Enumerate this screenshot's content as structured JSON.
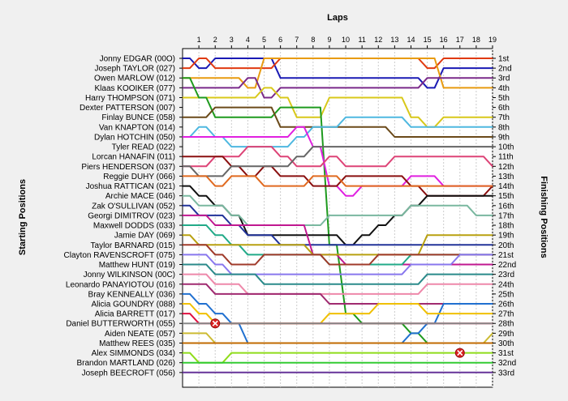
{
  "chart_data": {
    "type": "line",
    "title": "Laps",
    "ylabel_left": "Starting Positions",
    "ylabel_right": "Finishing Positions",
    "x": [
      0,
      1,
      2,
      3,
      4,
      5,
      6,
      7,
      8,
      9,
      10,
      11,
      12,
      13,
      14,
      15,
      16,
      17,
      18,
      19
    ],
    "x_tick_labels": [
      "1",
      "2",
      "3",
      "4",
      "5",
      "6",
      "7",
      "8",
      "9",
      "10",
      "11",
      "12",
      "13",
      "14",
      "15",
      "16",
      "17",
      "18",
      "19"
    ],
    "y_range": [
      1,
      33
    ],
    "y_axis_inverted": true,
    "grid": true,
    "finish_labels": [
      "1st",
      "2nd",
      "3rd",
      "4th",
      "5th",
      "6th",
      "7th",
      "8th",
      "9th",
      "10th",
      "11th",
      "12th",
      "13th",
      "14th",
      "15th",
      "16th",
      "17th",
      "18th",
      "19th",
      "20th",
      "21st",
      "22nd",
      "23rd",
      "24th",
      "25th",
      "26th",
      "27th",
      "28th",
      "29th",
      "30th",
      "31st",
      "32nd",
      "33rd"
    ],
    "series": [
      {
        "name": "Jonny EDGAR (00O)",
        "color": "#1a1ab4",
        "positions": [
          1,
          2,
          1,
          1,
          1,
          1,
          3,
          3,
          3,
          3,
          3,
          3,
          3,
          3,
          3,
          4,
          2,
          2,
          2,
          2
        ]
      },
      {
        "name": "Joseph TAYLOR (027)",
        "color": "#e03a10",
        "positions": [
          2,
          1,
          2,
          2,
          2,
          2,
          1,
          1,
          1,
          1,
          1,
          1,
          1,
          1,
          1,
          2,
          1,
          1,
          1,
          1
        ]
      },
      {
        "name": "Owen MARLOW (012)",
        "color": "#e89b10",
        "positions": [
          3,
          3,
          3,
          3,
          4,
          1,
          1,
          1,
          1,
          1,
          1,
          1,
          1,
          1,
          1,
          1,
          4,
          4,
          4,
          4
        ]
      },
      {
        "name": "Klaas KOOIKER (077)",
        "color": "#7a2a8a",
        "positions": [
          4,
          4,
          4,
          4,
          3,
          5,
          4,
          4,
          4,
          4,
          4,
          4,
          4,
          4,
          4,
          3,
          3,
          3,
          3,
          3
        ]
      },
      {
        "name": "Harry THOMPSON (071)",
        "color": "#d8c81a",
        "positions": [
          5,
          5,
          5,
          5,
          5,
          4,
          5,
          7,
          7,
          5,
          5,
          5,
          5,
          5,
          7,
          8,
          7,
          7,
          7,
          7
        ]
      },
      {
        "name": "Dexter PATTERSON (007)",
        "color": "#1e9a1e",
        "positions": [
          3,
          5,
          7,
          7,
          7,
          7,
          6,
          6,
          6,
          20,
          27,
          28,
          28,
          28,
          29,
          30,
          30,
          30,
          30,
          30
        ]
      },
      {
        "name": "Finlay BUNCE (058)",
        "color": "#6b4a1a",
        "positions": [
          7,
          7,
          6,
          6,
          6,
          6,
          8,
          8,
          8,
          8,
          8,
          8,
          8,
          9,
          9,
          9,
          9,
          9,
          9,
          9
        ]
      },
      {
        "name": "Van KNAPTON (014)",
        "color": "#4fb8e0",
        "positions": [
          9,
          8,
          9,
          10,
          10,
          10,
          10,
          9,
          8,
          8,
          7,
          7,
          7,
          7,
          8,
          8,
          8,
          8,
          8,
          8
        ]
      },
      {
        "name": "Dylan HOTCHIN (050)",
        "color": "#e020e0",
        "positions": [
          9,
          9,
          9,
          9,
          9,
          9,
          9,
          8,
          10,
          14,
          15,
          14,
          14,
          14,
          13,
          13,
          14,
          14,
          14,
          14
        ]
      },
      {
        "name": "Tyler READ (022)",
        "color": "#dd4477",
        "positions": [
          12,
          12,
          11,
          11,
          10,
          10,
          11,
          12,
          12,
          11,
          12,
          12,
          12,
          11,
          11,
          11,
          11,
          11,
          11,
          12
        ]
      },
      {
        "name": "Lorcan HANAFIN (011)",
        "color": "#8a1010",
        "positions": [
          11,
          11,
          11,
          12,
          13,
          12,
          13,
          13,
          14,
          14,
          13,
          13,
          13,
          13,
          14,
          15,
          15,
          15,
          15,
          14
        ]
      },
      {
        "name": "Piers HENDERSON (037)",
        "color": "#666666",
        "positions": [
          12,
          13,
          13,
          12,
          12,
          12,
          12,
          11,
          10,
          10,
          10,
          10,
          10,
          10,
          10,
          10,
          10,
          10,
          10,
          10
        ]
      },
      {
        "name": "Reggie DUHY (066)",
        "color": "#e06a20",
        "positions": [
          13,
          13,
          14,
          13,
          13,
          14,
          14,
          14,
          13,
          13,
          14,
          14,
          14,
          14,
          14,
          14,
          14,
          14,
          14,
          14
        ]
      },
      {
        "name": "Joshua RATTICAN (021)",
        "color": "#111111",
        "positions": [
          14,
          15,
          16,
          17,
          19,
          19,
          19,
          19,
          19,
          19,
          20,
          19,
          18,
          17,
          16,
          15,
          15,
          15,
          15,
          15
        ]
      },
      {
        "name": "Archie MACE (046)",
        "color": "#7ab8a0",
        "positions": [
          15,
          16,
          16,
          17,
          18,
          18,
          18,
          18,
          18,
          17,
          17,
          17,
          17,
          17,
          16,
          16,
          16,
          16,
          17,
          17
        ]
      },
      {
        "name": "Zak O'SULLIVAN (052)",
        "color": "#223399",
        "positions": [
          16,
          17,
          17,
          18,
          19,
          19,
          20,
          20,
          20,
          20,
          20,
          20,
          20,
          20,
          20,
          20,
          20,
          20,
          20,
          20
        ]
      },
      {
        "name": "Georgi DIMITROV (023)",
        "color": "#c01890",
        "positions": [
          17,
          17,
          18,
          18,
          18,
          18,
          18,
          18,
          21,
          21,
          22,
          22,
          22,
          22,
          22,
          22,
          22,
          22,
          22,
          22
        ]
      },
      {
        "name": "Maxwell DODDS (033)",
        "color": "#22aa88",
        "positions": [
          18,
          18,
          19,
          20,
          21,
          21,
          21,
          21,
          21,
          22,
          22,
          22,
          22,
          22,
          21,
          21,
          21,
          21,
          21,
          21
        ]
      },
      {
        "name": "Jamie DAY (069)",
        "color": "#b8a010",
        "positions": [
          19,
          20,
          20,
          20,
          20,
          20,
          20,
          20,
          21,
          21,
          21,
          21,
          21,
          21,
          21,
          19,
          19,
          19,
          19,
          19
        ]
      },
      {
        "name": "Taylor BARNARD (015)",
        "color": "#a03a2a",
        "positions": [
          20,
          20,
          21,
          22,
          22,
          21,
          21,
          21,
          21,
          22,
          22,
          22,
          21,
          21,
          21,
          21,
          21,
          21,
          21,
          21
        ]
      },
      {
        "name": "Clayton RAVENSCROFT (075)",
        "color": "#8877ee",
        "positions": [
          21,
          21,
          22,
          23,
          23,
          23,
          23,
          23,
          23,
          23,
          23,
          23,
          23,
          23,
          22,
          22,
          22,
          21,
          21,
          21
        ]
      },
      {
        "name": "Matthew HUNT (019)",
        "color": "#2a8a8a",
        "positions": [
          22,
          22,
          23,
          23,
          23,
          24,
          24,
          24,
          24,
          24,
          24,
          24,
          24,
          24,
          24,
          23,
          23,
          23,
          23,
          23
        ]
      },
      {
        "name": "Jonny WILKINSON (00C)",
        "color": "#ee88aa",
        "positions": [
          23,
          23,
          24,
          24,
          25,
          25,
          25,
          25,
          25,
          25,
          25,
          25,
          25,
          25,
          25,
          24,
          24,
          24,
          24,
          24
        ]
      },
      {
        "name": "Leonardo PANAYIOTOU (016)",
        "color": "#a02a70",
        "positions": [
          24,
          24,
          25,
          25,
          25,
          25,
          25,
          25,
          25,
          26,
          26,
          26,
          26,
          26,
          26,
          26,
          26,
          26,
          26,
          26
        ]
      },
      {
        "name": "Bray KENNEALLY (036)",
        "color": "#2070d0",
        "positions": [
          25,
          26,
          27,
          28,
          30,
          30,
          30,
          30,
          30,
          30,
          30,
          30,
          30,
          30,
          29,
          28,
          26,
          26,
          26,
          26
        ]
      },
      {
        "name": "Alicia GOUNDRY (088)",
        "color": "#f0c000",
        "positions": [
          26,
          27,
          28,
          28,
          28,
          28,
          28,
          28,
          28,
          27,
          27,
          27,
          26,
          26,
          26,
          27,
          27,
          27,
          27,
          27
        ]
      },
      {
        "name": "Alicia BARRETT (017)",
        "color": "#e01040",
        "positions": [
          27,
          28,
          28,
          28,
          28,
          28,
          28,
          28,
          28,
          28,
          28,
          28,
          28,
          28,
          28,
          28,
          28,
          28,
          28,
          28
        ]
      },
      {
        "name": "Daniel BUTTERWORTH (055)",
        "color": "#888888",
        "positions": [
          28,
          28,
          28,
          28,
          28,
          28,
          28,
          28,
          28,
          28,
          28,
          28,
          28,
          28,
          28,
          28,
          28,
          28,
          28,
          28
        ]
      },
      {
        "name": "Aiden NEATE (057)",
        "color": "#ccbb33",
        "positions": [
          29,
          29,
          30,
          30,
          30,
          30,
          30,
          30,
          30,
          30,
          30,
          30,
          30,
          30,
          30,
          30,
          30,
          30,
          30,
          29
        ]
      },
      {
        "name": "Matthew REES (035)",
        "color": "#c06a00",
        "positions": [
          30,
          30,
          30,
          30,
          30,
          30,
          30,
          30,
          30,
          30,
          30,
          30,
          30,
          30,
          30,
          30,
          30,
          30,
          30,
          30
        ]
      },
      {
        "name": "Alex SIMMONDS (034)",
        "color": "#8fdc1a",
        "positions": [
          31,
          32,
          32,
          31,
          31,
          31,
          31,
          31,
          31,
          31,
          31,
          31,
          31,
          31,
          31,
          31,
          31,
          31,
          31,
          31
        ]
      },
      {
        "name": "Brandon MARTLAND (026)",
        "color": "#33cc33",
        "positions": [
          32,
          32,
          32,
          32,
          32,
          32,
          32,
          32,
          32,
          32,
          32,
          32,
          32,
          32,
          32,
          32,
          32,
          32,
          32,
          32
        ]
      },
      {
        "name": "Joseph BEECROFT (056)",
        "color": "#663399",
        "positions": [
          33,
          33,
          33,
          33,
          33,
          33,
          33,
          33,
          33,
          33,
          33,
          33,
          33,
          33,
          33,
          33,
          33,
          33,
          33,
          33
        ]
      }
    ],
    "retirements": [
      {
        "name": "Daniel BUTTERWORTH (055)",
        "lap": 2,
        "position": 28
      },
      {
        "name": "Alex SIMMONDS (034)",
        "lap": 17,
        "position": 31
      }
    ]
  }
}
